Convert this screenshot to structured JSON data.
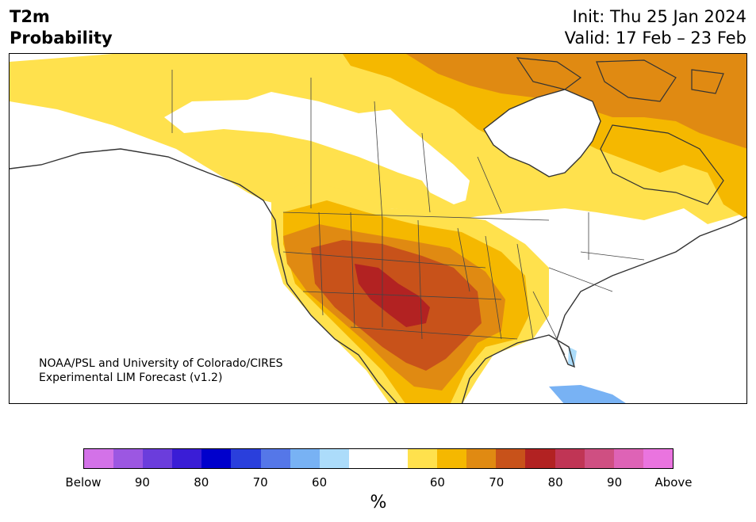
{
  "header": {
    "variable": "T2m",
    "product": "Probability",
    "init": "Init: Thu 25 Jan 2024",
    "valid": "Valid: 17 Feb – 23 Feb"
  },
  "credit": {
    "line1": "NOAA/PSL and University of Colorado/CIRES",
    "line2": "Experimental LIM Forecast (v1.2)"
  },
  "colorbar": {
    "unit": "%",
    "colors": [
      "#d372e8",
      "#9c57e2",
      "#6b3ddc",
      "#3a1dd6",
      "#0000cc",
      "#2a3fdc",
      "#5577e8",
      "#78b2f4",
      "#acdcfa",
      "#ffffff",
      "#ffffff",
      "#ffe14d",
      "#f5b800",
      "#e08a12",
      "#c8521a",
      "#b22222",
      "#c03555",
      "#cf4f82",
      "#de63b6",
      "#ea74df"
    ],
    "ticks": [
      "Below",
      "90",
      "80",
      "70",
      "60",
      "60",
      "70",
      "80",
      "90",
      "Above"
    ]
  },
  "legend_colors": {
    "land": "#ffffff",
    "above_55_60": "#ffe14d",
    "above_60_65": "#f5b800",
    "above_65_70": "#e08a12",
    "above_70_75": "#c8521a",
    "above_75_80": "#b22222",
    "below_55_60": "#acdcfa",
    "below_60_65": "#78b2f4"
  }
}
